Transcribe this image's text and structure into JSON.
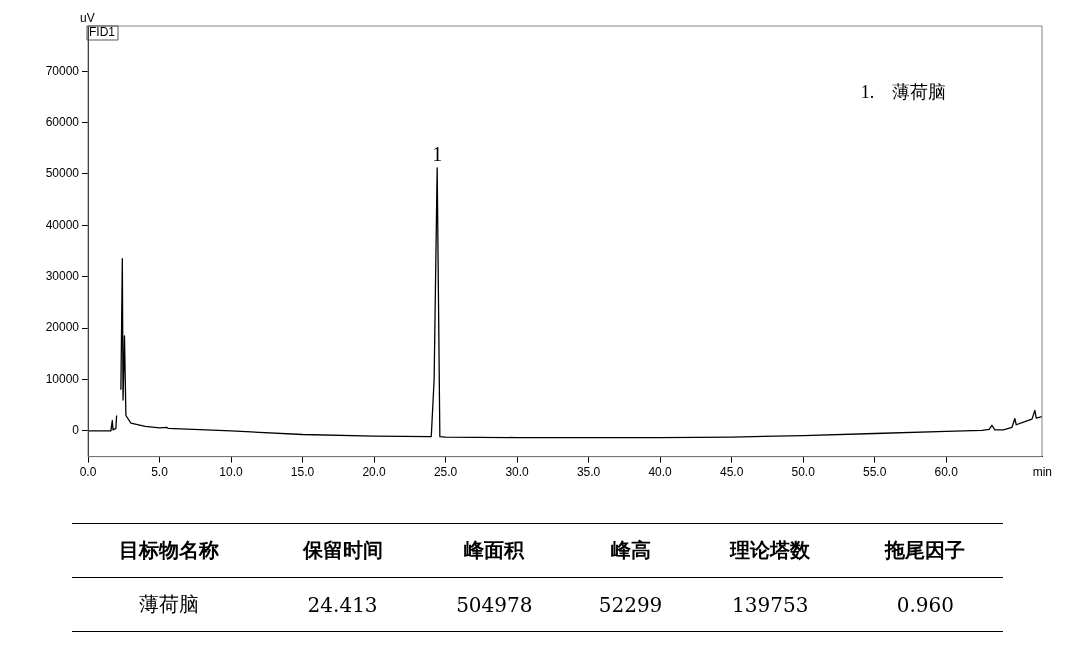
{
  "chart_data": {
    "type": "line",
    "xlabel": "min",
    "ylabel": "uV",
    "x": [
      0,
      1.6,
      1.7,
      1.75,
      1.95,
      2.0,
      2.05,
      2.2,
      2.3,
      2.4,
      2.45,
      2.55,
      2.65,
      3.0,
      4.0,
      5.0,
      5.5,
      5.6,
      10,
      15,
      20,
      24.0,
      24.2,
      24.413,
      24.6,
      25,
      30,
      40,
      45,
      50,
      55,
      60,
      62.5,
      63,
      63.2,
      63.4,
      64,
      64.6,
      64.8,
      64.9,
      65.5,
      66.0,
      66.2,
      66.3,
      66.7
    ],
    "series": [
      {
        "color": "#000000",
        "values": [
          0,
          0,
          2000,
          200,
          500,
          3000,
          null,
          null,
          8000,
          33500,
          6000,
          18500,
          3000,
          1500,
          900,
          600,
          700,
          500,
          0,
          -700,
          -1000,
          -1100,
          10000,
          51200,
          -1100,
          -1200,
          -1300,
          -1300,
          -1200,
          -900,
          -500,
          -100,
          100,
          300,
          1100,
          200,
          200,
          700,
          2400,
          1200,
          1800,
          2300,
          4000,
          2500,
          2800
        ]
      }
    ],
    "xlim": [
      0,
      66.7
    ],
    "ylim": [
      -5000,
      78800
    ],
    "xticks": [
      {
        "value": 0,
        "label": "0.0"
      },
      {
        "value": 5,
        "label": "5.0"
      },
      {
        "value": 10,
        "label": "10.0"
      },
      {
        "value": 15,
        "label": "15.0"
      },
      {
        "value": 20,
        "label": "20.0"
      },
      {
        "value": 25,
        "label": "25.0"
      },
      {
        "value": 30,
        "label": "30.0"
      },
      {
        "value": 35,
        "label": "35.0"
      },
      {
        "value": 40,
        "label": "40.0"
      },
      {
        "value": 45,
        "label": "45.0"
      },
      {
        "value": 50,
        "label": "50.0"
      },
      {
        "value": 55,
        "label": "55.0"
      },
      {
        "value": 60,
        "label": "60.0"
      }
    ],
    "yticks": [
      0,
      10000,
      20000,
      30000,
      40000,
      50000,
      60000,
      70000
    ],
    "grid": false,
    "legend": false,
    "marker": "none",
    "line_style": "solid",
    "annotations": [
      {
        "text": "1",
        "x": 24.413,
        "y": 51200
      },
      "1.    薄荷脑",
      "FID1",
      "目标物名称",
      "保留时间",
      "峰面积",
      "峰高",
      "理论塔数",
      "拖尾因子",
      "薄荷脑",
      "24.413",
      "504978",
      "52299",
      "139753",
      "0.960"
    ]
  }
}
